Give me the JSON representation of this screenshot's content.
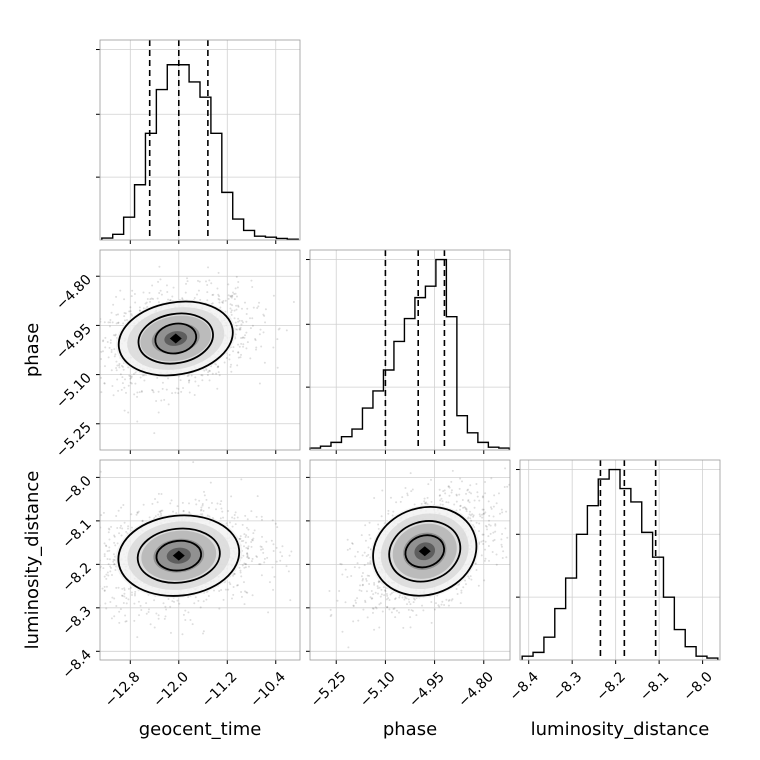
{
  "chart_data": {
    "type": "corner",
    "parameters": [
      "geocent_time",
      "phase",
      "luminosity_distance"
    ],
    "grid": true,
    "marginals": [
      {
        "parameter": "geocent_time",
        "xlim": [
          -13.3,
          -10.0
        ],
        "xticks": [
          -12.8,
          -12.0,
          -11.2,
          -10.4
        ],
        "xtick_labels": [
          "−12.8",
          "−12.0",
          "−11.2",
          "−10.4"
        ],
        "xlabel": "geocent_time",
        "bin_edges": [
          -13.27,
          -13.09,
          -12.91,
          -12.73,
          -12.55,
          -12.37,
          -12.19,
          -12.01,
          -11.83,
          -11.65,
          -11.47,
          -11.29,
          -11.11,
          -10.93,
          -10.75,
          -10.57,
          -10.39,
          -10.21,
          -10.03
        ],
        "counts": [
          0.01,
          0.03,
          0.12,
          0.29,
          0.56,
          0.79,
          0.92,
          0.92,
          0.83,
          0.75,
          0.56,
          0.25,
          0.11,
          0.05,
          0.02,
          0.015,
          0.008,
          0.004
        ],
        "quantiles": [
          -12.48,
          -12.0,
          -11.52
        ]
      },
      {
        "parameter": "phase",
        "xlim": [
          -5.33,
          -4.72
        ],
        "xticks": [
          -5.25,
          -5.1,
          -4.95,
          -4.8
        ],
        "xtick_labels": [
          "−5.25",
          "−5.10",
          "−4.95",
          "−4.80"
        ],
        "xlabel": "phase",
        "bin_edges": [
          -5.33,
          -5.298,
          -5.266,
          -5.234,
          -5.202,
          -5.17,
          -5.138,
          -5.106,
          -5.074,
          -5.042,
          -5.01,
          -4.978,
          -4.946,
          -4.914,
          -4.882,
          -4.85,
          -4.818,
          -4.786,
          -4.754,
          -4.722
        ],
        "counts": [
          0.01,
          0.02,
          0.04,
          0.07,
          0.11,
          0.22,
          0.31,
          0.42,
          0.57,
          0.69,
          0.8,
          0.86,
          1.0,
          0.7,
          0.18,
          0.09,
          0.04,
          0.015,
          0.01
        ],
        "quantiles": [
          -5.1,
          -5.0,
          -4.92
        ]
      },
      {
        "parameter": "luminosity_distance",
        "xlim": [
          -8.42,
          -7.96
        ],
        "xticks": [
          -8.4,
          -8.3,
          -8.2,
          -8.1,
          -8.0
        ],
        "xtick_labels": [
          "−8.4",
          "−8.3",
          "−8.2",
          "−8.1",
          "−8.0"
        ],
        "xlabel": "luminosity_distance",
        "bin_edges": [
          -8.415,
          -8.39,
          -8.365,
          -8.34,
          -8.315,
          -8.29,
          -8.265,
          -8.24,
          -8.215,
          -8.19,
          -8.165,
          -8.14,
          -8.115,
          -8.09,
          -8.065,
          -8.04,
          -8.015,
          -7.99,
          -7.965
        ],
        "counts": [
          0.02,
          0.04,
          0.12,
          0.27,
          0.43,
          0.66,
          0.81,
          0.95,
          1.0,
          0.9,
          0.83,
          0.67,
          0.54,
          0.33,
          0.16,
          0.07,
          0.02,
          0.01
        ],
        "quantiles": [
          -8.235,
          -8.18,
          -8.108
        ]
      }
    ],
    "pairs": [
      {
        "x_param": "geocent_time",
        "y_param": "phase",
        "xlim": [
          -13.3,
          -10.0
        ],
        "ylim": [
          -5.33,
          -4.72
        ],
        "yticks": [
          -5.25,
          -5.1,
          -4.95,
          -4.8
        ],
        "ytick_labels": [
          "−5.25",
          "−5.10",
          "−4.95",
          "−4.80"
        ],
        "ylabel": "phase",
        "center": [
          -12.05,
          -4.99
        ],
        "contour_levels": [
          {
            "rx": 0.95,
            "ry": 0.11
          },
          {
            "rx": 0.62,
            "ry": 0.075
          },
          {
            "rx": 0.34,
            "ry": 0.045
          }
        ]
      },
      {
        "x_param": "geocent_time",
        "y_param": "luminosity_distance",
        "xlim": [
          -13.3,
          -10.0
        ],
        "ylim": [
          -8.42,
          -7.96
        ],
        "yticks": [
          -8.4,
          -8.3,
          -8.2,
          -8.1,
          -8.0
        ],
        "ytick_labels": [
          "−8.4",
          "−8.3",
          "−8.2",
          "−8.1",
          "−8.0"
        ],
        "ylabel": "luminosity_distance",
        "center": [
          -12.0,
          -8.18
        ],
        "contour_levels": [
          {
            "rx": 1.0,
            "ry": 0.092
          },
          {
            "rx": 0.68,
            "ry": 0.062
          },
          {
            "rx": 0.37,
            "ry": 0.034
          }
        ]
      },
      {
        "x_param": "phase",
        "y_param": "luminosity_distance",
        "xlim": [
          -5.33,
          -4.72
        ],
        "ylim": [
          -8.42,
          -7.96
        ],
        "center": [
          -4.98,
          -8.17
        ],
        "contour_levels": [
          {
            "rx": 0.16,
            "ry": 0.1
          },
          {
            "rx": 0.11,
            "ry": 0.068
          },
          {
            "rx": 0.06,
            "ry": 0.036
          }
        ]
      }
    ]
  }
}
